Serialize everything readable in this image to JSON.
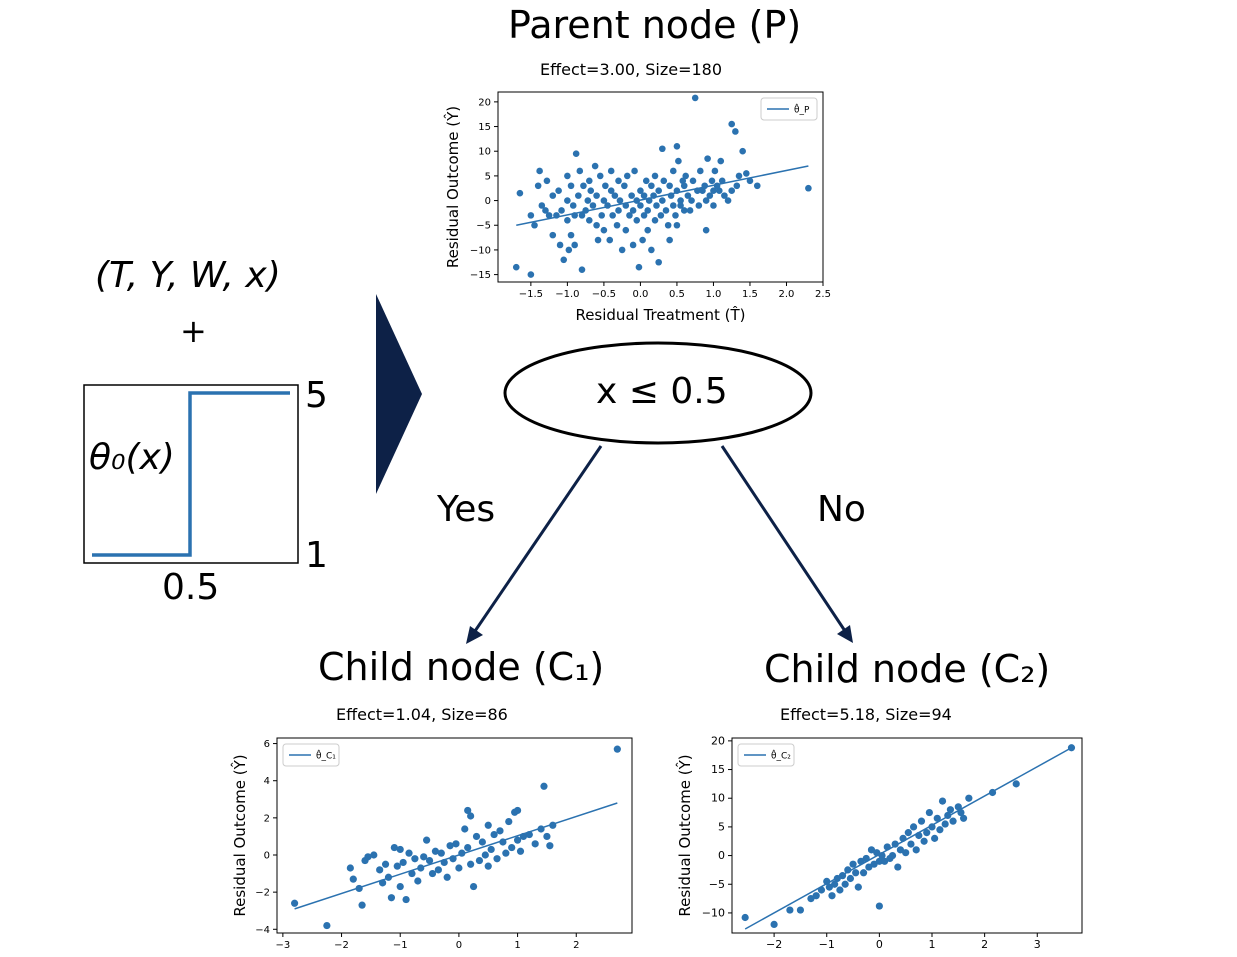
{
  "left": {
    "tuple": "(T, Y, W, x)",
    "plus": "+",
    "theta_label": "θ₀(x)",
    "y_high": "5",
    "y_low": "1",
    "x_tick": "0.5"
  },
  "parent": {
    "title": "Parent node (P)",
    "subtitle": "Effect=3.00, Size=180"
  },
  "split": {
    "condition": "x ≤ 0.5",
    "yes_label": "Yes",
    "no_label": "No"
  },
  "child1": {
    "title": "Child node (C₁)",
    "subtitle": "Effect=1.04, Size=86"
  },
  "child2": {
    "title": "Child node (C₂)",
    "subtitle": "Effect=5.18, Size=94"
  },
  "colors": {
    "series": "#2b72b0",
    "arrow": "#0d2147",
    "text": "#000000"
  },
  "chart_data": [
    {
      "id": "parent",
      "type": "scatter",
      "xlabel": "Residual Treatment (T̂)",
      "ylabel": "Residual Outcome (Ŷ)",
      "xlim": [
        -1.95,
        2.5
      ],
      "ylim": [
        -16.5,
        22
      ],
      "xticks": [
        -1.5,
        -1.0,
        -0.5,
        0.0,
        0.5,
        1.0,
        1.5,
        2.0,
        2.5
      ],
      "xtick_labels": [
        "−1.5",
        "−1.0",
        "−0.5",
        "0.0",
        "0.5",
        "1.0",
        "1.5",
        "2.0",
        "2.5"
      ],
      "yticks": [
        -15,
        -10,
        -5,
        0,
        5,
        10,
        15,
        20
      ],
      "ytick_labels": [
        "−15",
        "−10",
        "−5",
        "0",
        "5",
        "10",
        "15",
        "20"
      ],
      "legend": {
        "label": "θ̂_P",
        "placement": "top-right"
      },
      "fit_line": {
        "x": [
          -1.7,
          2.3
        ],
        "y": [
          -5.0,
          7.0
        ]
      },
      "points": [
        [
          -1.7,
          -13.5
        ],
        [
          -1.65,
          1.5
        ],
        [
          -1.5,
          -15
        ],
        [
          -1.5,
          -3
        ],
        [
          -1.45,
          -5
        ],
        [
          -1.4,
          3
        ],
        [
          -1.38,
          6
        ],
        [
          -1.35,
          -1
        ],
        [
          -1.3,
          -2
        ],
        [
          -1.28,
          4
        ],
        [
          -1.25,
          -3
        ],
        [
          -1.2,
          1
        ],
        [
          -1.2,
          -7
        ],
        [
          -1.15,
          -3
        ],
        [
          -1.12,
          2
        ],
        [
          -1.1,
          -9
        ],
        [
          -1.08,
          -2
        ],
        [
          -1.05,
          -12
        ],
        [
          -1.0,
          5
        ],
        [
          -1.0,
          0
        ],
        [
          -1.0,
          -4
        ],
        [
          -0.98,
          -10
        ],
        [
          -0.95,
          3
        ],
        [
          -0.95,
          -7
        ],
        [
          -0.92,
          -1
        ],
        [
          -0.9,
          -3
        ],
        [
          -0.9,
          -9
        ],
        [
          -0.88,
          9.5
        ],
        [
          -0.85,
          1
        ],
        [
          -0.83,
          6
        ],
        [
          -0.8,
          -3
        ],
        [
          -0.8,
          -14
        ],
        [
          -0.78,
          3
        ],
        [
          -0.75,
          -2
        ],
        [
          -0.72,
          0
        ],
        [
          -0.7,
          -4
        ],
        [
          -0.7,
          4
        ],
        [
          -0.68,
          2
        ],
        [
          -0.65,
          -1
        ],
        [
          -0.62,
          7
        ],
        [
          -0.6,
          -5
        ],
        [
          -0.6,
          1
        ],
        [
          -0.58,
          -8
        ],
        [
          -0.55,
          5
        ],
        [
          -0.53,
          -3
        ],
        [
          -0.5,
          0
        ],
        [
          -0.5,
          -6
        ],
        [
          -0.48,
          3
        ],
        [
          -0.45,
          -1
        ],
        [
          -0.42,
          -8
        ],
        [
          -0.4,
          6
        ],
        [
          -0.4,
          2
        ],
        [
          -0.38,
          -3
        ],
        [
          -0.35,
          1
        ],
        [
          -0.32,
          -5
        ],
        [
          -0.3,
          4
        ],
        [
          -0.3,
          -2
        ],
        [
          -0.28,
          0
        ],
        [
          -0.25,
          -10
        ],
        [
          -0.22,
          3
        ],
        [
          -0.2,
          -1
        ],
        [
          -0.2,
          -6
        ],
        [
          -0.18,
          5
        ],
        [
          -0.15,
          -3
        ],
        [
          -0.12,
          1
        ],
        [
          -0.1,
          -9
        ],
        [
          -0.1,
          -2
        ],
        [
          -0.08,
          6
        ],
        [
          -0.05,
          0
        ],
        [
          -0.05,
          -4
        ],
        [
          -0.02,
          -13.5
        ],
        [
          0.0,
          2
        ],
        [
          0.0,
          -1
        ],
        [
          0.03,
          -8
        ],
        [
          0.05,
          -3
        ],
        [
          0.05,
          1
        ],
        [
          0.08,
          4
        ],
        [
          0.1,
          -2
        ],
        [
          0.1,
          -6
        ],
        [
          0.12,
          0
        ],
        [
          0.15,
          3
        ],
        [
          0.15,
          -10
        ],
        [
          0.18,
          1
        ],
        [
          0.2,
          -4
        ],
        [
          0.2,
          5
        ],
        [
          0.22,
          -1
        ],
        [
          0.25,
          -12.5
        ],
        [
          0.25,
          2
        ],
        [
          0.28,
          -3
        ],
        [
          0.3,
          10.5
        ],
        [
          0.3,
          0
        ],
        [
          0.32,
          4
        ],
        [
          0.35,
          -2
        ],
        [
          0.38,
          -5
        ],
        [
          0.4,
          3
        ],
        [
          0.4,
          -8
        ],
        [
          0.42,
          1
        ],
        [
          0.45,
          -1
        ],
        [
          0.45,
          6
        ],
        [
          0.48,
          -3
        ],
        [
          0.5,
          11
        ],
        [
          0.5,
          2
        ],
        [
          0.5,
          -5
        ],
        [
          0.52,
          8
        ],
        [
          0.55,
          0
        ],
        [
          0.55,
          -1
        ],
        [
          0.58,
          4
        ],
        [
          0.6,
          3
        ],
        [
          0.6,
          -2
        ],
        [
          0.62,
          5
        ],
        [
          0.65,
          1
        ],
        [
          0.68,
          -2
        ],
        [
          0.7,
          0
        ],
        [
          0.72,
          4
        ],
        [
          0.75,
          20.8
        ],
        [
          0.78,
          2
        ],
        [
          0.8,
          -1
        ],
        [
          0.82,
          6
        ],
        [
          0.85,
          2
        ],
        [
          0.88,
          3
        ],
        [
          0.9,
          0
        ],
        [
          0.9,
          -6
        ],
        [
          0.92,
          8.5
        ],
        [
          0.95,
          1
        ],
        [
          0.98,
          4
        ],
        [
          1.0,
          2
        ],
        [
          1.0,
          -1
        ],
        [
          1.02,
          6
        ],
        [
          1.05,
          3
        ],
        [
          1.08,
          2
        ],
        [
          1.1,
          8
        ],
        [
          1.12,
          4
        ],
        [
          1.15,
          1
        ],
        [
          1.2,
          0
        ],
        [
          1.25,
          2
        ],
        [
          1.25,
          15.5
        ],
        [
          1.3,
          14
        ],
        [
          1.32,
          3
        ],
        [
          1.35,
          5
        ],
        [
          1.4,
          10
        ],
        [
          1.45,
          5.5
        ],
        [
          1.5,
          4
        ],
        [
          1.6,
          3
        ],
        [
          2.3,
          2.5
        ]
      ]
    },
    {
      "id": "child1",
      "type": "scatter",
      "xlabel": "",
      "ylabel": "Residual Outcome (Ŷ)",
      "xlim": [
        -3.1,
        2.95
      ],
      "ylim": [
        -4.2,
        6.3
      ],
      "xticks": [
        -3,
        -2,
        -1,
        0,
        1,
        2
      ],
      "xtick_labels": [
        "−3",
        "−2",
        "−1",
        "0",
        "1",
        "2"
      ],
      "yticks": [
        -4,
        -2,
        0,
        2,
        4,
        6
      ],
      "ytick_labels": [
        "−4",
        "−2",
        "0",
        "2",
        "4",
        "6"
      ],
      "legend": {
        "label": "θ̂_C₁",
        "placement": "top-left"
      },
      "fit_line": {
        "x": [
          -2.8,
          2.7
        ],
        "y": [
          -2.9,
          2.8
        ]
      },
      "points": [
        [
          -2.8,
          -2.6
        ],
        [
          -2.25,
          -3.8
        ],
        [
          -1.85,
          -0.7
        ],
        [
          -1.8,
          -1.3
        ],
        [
          -1.7,
          -1.8
        ],
        [
          -1.65,
          -2.7
        ],
        [
          -1.6,
          -0.3
        ],
        [
          -1.55,
          -0.1
        ],
        [
          -1.45,
          0.0
        ],
        [
          -1.35,
          -0.8
        ],
        [
          -1.3,
          -1.5
        ],
        [
          -1.25,
          -0.5
        ],
        [
          -1.2,
          -1.2
        ],
        [
          -1.15,
          -2.3
        ],
        [
          -1.1,
          0.4
        ],
        [
          -1.05,
          -0.6
        ],
        [
          -1.0,
          0.3
        ],
        [
          -1.0,
          -1.7
        ],
        [
          -0.95,
          -0.4
        ],
        [
          -0.9,
          -2.4
        ],
        [
          -0.85,
          0.1
        ],
        [
          -0.8,
          -1.0
        ],
        [
          -0.75,
          -0.2
        ],
        [
          -0.7,
          -1.4
        ],
        [
          -0.65,
          -0.7
        ],
        [
          -0.6,
          -0.1
        ],
        [
          -0.55,
          0.8
        ],
        [
          -0.5,
          -0.3
        ],
        [
          -0.45,
          -1.0
        ],
        [
          -0.4,
          0.2
        ],
        [
          -0.35,
          -0.8
        ],
        [
          -0.3,
          0.1
        ],
        [
          -0.25,
          -0.4
        ],
        [
          -0.2,
          -1.2
        ],
        [
          -0.15,
          0.5
        ],
        [
          -0.1,
          -0.2
        ],
        [
          -0.05,
          0.6
        ],
        [
          0.0,
          -0.7
        ],
        [
          0.05,
          0.1
        ],
        [
          0.1,
          1.4
        ],
        [
          0.15,
          0.4
        ],
        [
          0.15,
          2.4
        ],
        [
          0.2,
          -0.5
        ],
        [
          0.2,
          2.1
        ],
        [
          0.25,
          -1.7
        ],
        [
          0.3,
          1.0
        ],
        [
          0.35,
          -0.3
        ],
        [
          0.4,
          0.7
        ],
        [
          0.45,
          0.0
        ],
        [
          0.5,
          1.6
        ],
        [
          0.5,
          -0.6
        ],
        [
          0.55,
          0.3
        ],
        [
          0.6,
          1.1
        ],
        [
          0.65,
          -0.2
        ],
        [
          0.7,
          1.3
        ],
        [
          0.75,
          0.7
        ],
        [
          0.8,
          0.1
        ],
        [
          0.85,
          1.8
        ],
        [
          0.9,
          0.4
        ],
        [
          0.95,
          2.3
        ],
        [
          1.0,
          0.8
        ],
        [
          1.0,
          2.4
        ],
        [
          1.05,
          0.2
        ],
        [
          1.1,
          1.0
        ],
        [
          1.2,
          1.1
        ],
        [
          1.3,
          0.6
        ],
        [
          1.4,
          1.4
        ],
        [
          1.45,
          3.7
        ],
        [
          1.5,
          1.0
        ],
        [
          1.55,
          0.5
        ],
        [
          1.6,
          1.6
        ],
        [
          2.7,
          5.7
        ]
      ]
    },
    {
      "id": "child2",
      "type": "scatter",
      "xlabel": "",
      "ylabel": "Residual Outcome (Ŷ)",
      "xlim": [
        -2.8,
        3.85
      ],
      "ylim": [
        -13.5,
        20.5
      ],
      "xticks": [
        -2,
        -1,
        0,
        1,
        2,
        3
      ],
      "xtick_labels": [
        "−2",
        "−1",
        "0",
        "1",
        "2",
        "3"
      ],
      "yticks": [
        -10,
        -5,
        0,
        5,
        10,
        15,
        20
      ],
      "ytick_labels": [
        "−10",
        "−5",
        "0",
        "5",
        "10",
        "15",
        "20"
      ],
      "legend": {
        "label": "θ̂_C₂",
        "placement": "top-left"
      },
      "fit_line": {
        "x": [
          -2.55,
          3.65
        ],
        "y": [
          -12.8,
          18.8
        ]
      },
      "points": [
        [
          -2.55,
          -10.8
        ],
        [
          -2.0,
          -12.0
        ],
        [
          -1.7,
          -9.5
        ],
        [
          -1.5,
          -9.5
        ],
        [
          -1.3,
          -7.5
        ],
        [
          -1.2,
          -7.0
        ],
        [
          -1.1,
          -6.0
        ],
        [
          -1.0,
          -4.5
        ],
        [
          -0.95,
          -5.5
        ],
        [
          -0.9,
          -7.0
        ],
        [
          -0.85,
          -5.0
        ],
        [
          -0.8,
          -4.0
        ],
        [
          -0.75,
          -6.0
        ],
        [
          -0.7,
          -3.5
        ],
        [
          -0.65,
          -5.0
        ],
        [
          -0.6,
          -2.5
        ],
        [
          -0.55,
          -4.0
        ],
        [
          -0.5,
          -1.5
        ],
        [
          -0.45,
          -3.0
        ],
        [
          -0.4,
          -5.5
        ],
        [
          -0.35,
          -1.0
        ],
        [
          -0.3,
          -3.0
        ],
        [
          -0.25,
          -0.5
        ],
        [
          -0.2,
          -2.0
        ],
        [
          -0.15,
          1.0
        ],
        [
          -0.1,
          -1.5
        ],
        [
          -0.05,
          0.5
        ],
        [
          0.0,
          -1.0
        ],
        [
          0.0,
          -8.8
        ],
        [
          0.05,
          0.0
        ],
        [
          0.1,
          -1.0
        ],
        [
          0.15,
          1.5
        ],
        [
          0.2,
          -0.5
        ],
        [
          0.25,
          0.0
        ],
        [
          0.3,
          2.0
        ],
        [
          0.35,
          -2.0
        ],
        [
          0.4,
          1.0
        ],
        [
          0.45,
          3.0
        ],
        [
          0.5,
          0.5
        ],
        [
          0.55,
          4.0
        ],
        [
          0.6,
          2.0
        ],
        [
          0.65,
          5.0
        ],
        [
          0.7,
          1.0
        ],
        [
          0.75,
          3.5
        ],
        [
          0.8,
          6.0
        ],
        [
          0.85,
          2.5
        ],
        [
          0.9,
          4.0
        ],
        [
          0.95,
          7.5
        ],
        [
          1.0,
          5.0
        ],
        [
          1.05,
          3.0
        ],
        [
          1.1,
          6.5
        ],
        [
          1.15,
          4.5
        ],
        [
          1.2,
          9.5
        ],
        [
          1.25,
          5.5
        ],
        [
          1.3,
          7.0
        ],
        [
          1.35,
          8.0
        ],
        [
          1.4,
          6.0
        ],
        [
          1.5,
          8.5
        ],
        [
          1.55,
          7.5
        ],
        [
          1.6,
          6.5
        ],
        [
          1.7,
          10.0
        ],
        [
          2.15,
          11.0
        ],
        [
          2.6,
          12.5
        ],
        [
          3.65,
          18.8
        ]
      ]
    }
  ]
}
